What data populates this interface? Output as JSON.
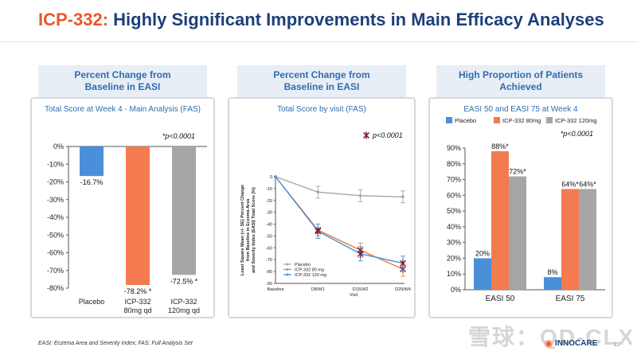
{
  "slide": {
    "title_accent": "ICP-332:",
    "title_rest": "Highly Significant Improvements in Main Efficacy Analyses",
    "footnote": "EASI: Eczema Area and Severity Index; FAS: Full Analysis Set",
    "watermark": "雪球：QD-CLX",
    "logo_text": "INNOCARE",
    "page_number": "22"
  },
  "panels": [
    {
      "header_line1": "Percent Change from",
      "header_line2": "Baseline in EASI",
      "subtitle": "Total Score at Week 4 - Main Analysis (FAS)"
    },
    {
      "header_line1": "Percent Change from",
      "header_line2": "Baseline in EASI",
      "subtitle": "Total Score by visit (FAS)"
    },
    {
      "header_line1": "High Proportion of Patients",
      "header_line2": "Achieved",
      "subtitle": "EASI 50 and EASI 75 at Week 4"
    }
  ],
  "chart_data": [
    {
      "type": "bar",
      "categories": [
        "Placebo",
        "ICP-332 80mg qd",
        "ICP-332 120mg qd"
      ],
      "category_lines": [
        [
          "Placebo"
        ],
        [
          "ICP-332",
          "80mg qd"
        ],
        [
          "ICP-332",
          "120mg qd"
        ]
      ],
      "values": [
        -16.7,
        -78.2,
        -72.5
      ],
      "data_labels": [
        "-16.7%",
        "-78.2% *",
        "-72.5% *"
      ],
      "colors": [
        "#4a90d9",
        "#f47a4f",
        "#a6a6a6"
      ],
      "ylim": [
        -80,
        0
      ],
      "yticks": [
        0,
        -10,
        -20,
        -30,
        -40,
        -50,
        -60,
        -70,
        -80
      ],
      "ytick_labels": [
        "0%",
        "-10%",
        "-20%",
        "-30%",
        "-40%",
        "-50%",
        "-60%",
        "-70%",
        "-80%"
      ],
      "annotation": "*p<0.0001"
    },
    {
      "type": "line",
      "categories": [
        "Baseline",
        "D8/W1",
        "D15/W2",
        "D29/W4"
      ],
      "xlabel": "Visit",
      "ylabel_lines": [
        "Least Square Mean (+/- SE) Percent Change",
        "from Baseline in Eczema Area",
        "and Severity Index (EASI) Total Score (%)"
      ],
      "ylim": [
        -90,
        0
      ],
      "yticks": [
        0,
        -10,
        -20,
        -30,
        -40,
        -50,
        -60,
        -70,
        -80,
        -90
      ],
      "ytick_labels": [
        "0",
        "-10",
        "-20",
        "-30",
        "-40",
        "-50",
        "-60",
        "-70",
        "-80",
        "-90"
      ],
      "series": [
        {
          "name": "Placebo",
          "values": [
            0,
            -13,
            -16,
            -17
          ],
          "errors": [
            0,
            5,
            5,
            5
          ],
          "color": "#a6a6a6",
          "significant": [
            false,
            false,
            false,
            false
          ]
        },
        {
          "name": "ICP-332 80 mg",
          "values": [
            0,
            -45,
            -62,
            -78
          ],
          "errors": [
            0,
            5,
            6,
            6
          ],
          "color": "#e8813a",
          "significant": [
            false,
            true,
            true,
            true
          ]
        },
        {
          "name": "ICP-332 120 mg",
          "values": [
            0,
            -46,
            -65,
            -73
          ],
          "errors": [
            0,
            6,
            6,
            6
          ],
          "color": "#4a90d9",
          "significant": [
            false,
            true,
            true,
            true
          ]
        }
      ],
      "annotation": "p<0.0001"
    },
    {
      "type": "bar",
      "categories": [
        "EASI 50",
        "EASI 75"
      ],
      "series": [
        {
          "name": "Placebo",
          "values": [
            20,
            8
          ],
          "data_labels": [
            "20%",
            "8%"
          ],
          "color": "#4a90d9"
        },
        {
          "name": "ICP-332 80mg",
          "values": [
            88,
            64
          ],
          "data_labels": [
            "88%*",
            "64%*"
          ],
          "color": "#f47a4f"
        },
        {
          "name": "ICP-332 120mg",
          "values": [
            72,
            64
          ],
          "data_labels": [
            "72%*",
            "64%*"
          ],
          "color": "#a6a6a6"
        }
      ],
      "ylim": [
        0,
        90
      ],
      "yticks": [
        0,
        10,
        20,
        30,
        40,
        50,
        60,
        70,
        80,
        90
      ],
      "ytick_labels": [
        "0%",
        "10%",
        "20%",
        "30%",
        "40%",
        "50%",
        "60%",
        "70%",
        "80%",
        "90%"
      ],
      "legend_position": "top",
      "annotation": "*p<0.0001"
    }
  ]
}
